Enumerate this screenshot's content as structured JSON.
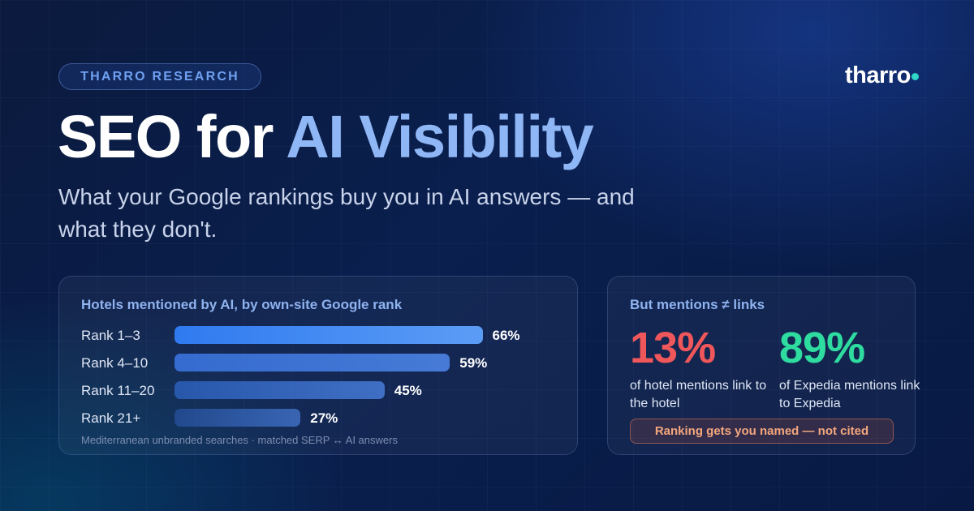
{
  "badge": "THARRO RESEARCH",
  "logo": {
    "text": "tharro",
    "icon": "dot-icon",
    "dot_color": "#2fd6c8"
  },
  "title": {
    "part1": "SEO for ",
    "part2": "AI Visibility",
    "accent_color": "#8fb6f5"
  },
  "subtitle": "What your Google rankings buy you in AI answers — and what they don't.",
  "rank_card": {
    "title": "Hotels mentioned by AI, by own-site Google rank",
    "footnote": "Mediterranean unbranded searches · matched SERP ↔ AI answers"
  },
  "chart_data": {
    "type": "bar",
    "orientation": "horizontal",
    "title": "Hotels mentioned by AI, by own-site Google rank",
    "categories": [
      "Rank 1–3",
      "Rank 4–10",
      "Rank 11–20",
      "Rank 21+"
    ],
    "values": [
      66,
      59,
      45,
      27
    ],
    "value_labels": [
      "66%",
      "59%",
      "45%",
      "27%"
    ],
    "unit": "%",
    "xlim": [
      0,
      100
    ],
    "colors": [
      "#2f7af0",
      "#3a74e0",
      "#2e64c4",
      "#2a55a8"
    ]
  },
  "links_card": {
    "title": "But mentions ≠ links",
    "stats": [
      {
        "value": "13%",
        "description": "of hotel mentions link to the hotel",
        "color": "#f0575a"
      },
      {
        "value": "89%",
        "description": "of Expedia mentions link to Expedia",
        "color": "#2fdca0"
      }
    ],
    "callout": "Ranking gets you named — not cited"
  }
}
